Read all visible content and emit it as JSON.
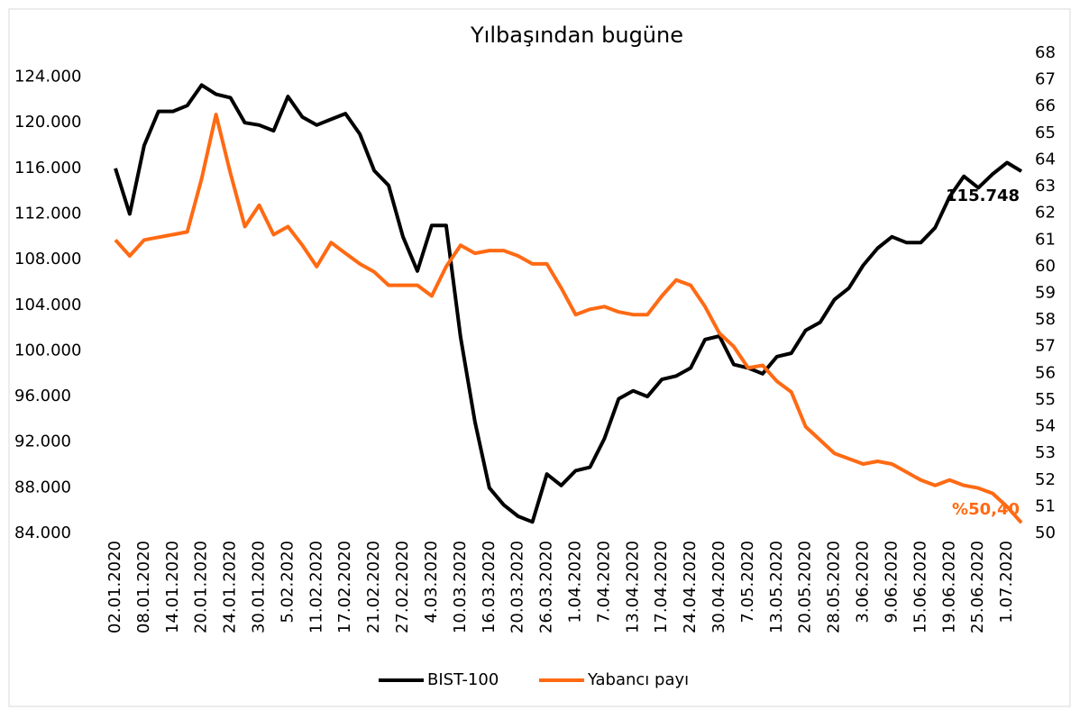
{
  "chart_data": {
    "type": "line",
    "title": "Yılbaşından bugüne",
    "categories": [
      "02.01.2020",
      null,
      "08.01.2020",
      null,
      "14.01.2020",
      null,
      "20.01.2020",
      null,
      "24.01.2020",
      null,
      "30.01.2020",
      null,
      "5.02.2020",
      null,
      "11.02.2020",
      null,
      "17.02.2020",
      null,
      "21.02.2020",
      null,
      "27.02.2020",
      null,
      "4.03.2020",
      null,
      "10.03.2020",
      null,
      "16.03.2020",
      null,
      "20.03.2020",
      null,
      "26.03.2020",
      null,
      "1.04.2020",
      null,
      "7.04.2020",
      null,
      "13.04.2020",
      null,
      "17.04.2020",
      null,
      "24.04.2020",
      null,
      "30.04.2020",
      null,
      "7.05.2020",
      null,
      "13.05.2020",
      null,
      "20.05.2020",
      null,
      "28.05.2020",
      null,
      "3.06.2020",
      null,
      "9.06.2020",
      null,
      "15.06.2020",
      null,
      "19.06.2020",
      null,
      "25.06.2020",
      null,
      "1.07.2020",
      null
    ],
    "series": [
      {
        "name": "BIST-100",
        "color": "#000000",
        "values": [
          116000,
          112000,
          118000,
          121000,
          121000,
          121500,
          123300,
          122500,
          122200,
          120000,
          119800,
          119300,
          122300,
          120500,
          119800,
          120300,
          120800,
          119000,
          115800,
          114500,
          110000,
          107000,
          111000,
          111000,
          101200,
          93800,
          88000,
          86500,
          85500,
          85000,
          89200,
          88200,
          89500,
          89800,
          92300,
          95800,
          96500,
          96000,
          97500,
          97800,
          98500,
          101000,
          101300,
          98800,
          98500,
          98000,
          99500,
          99800,
          101800,
          102500,
          104500,
          105500,
          107500,
          109000,
          110000,
          109500,
          109500,
          110800,
          113500,
          115300,
          114300,
          115500,
          116500,
          115748
        ],
        "value_labels": [
          null,
          null,
          null,
          null,
          null,
          null,
          null,
          null,
          null,
          null,
          null,
          null,
          null,
          null,
          null,
          null,
          null,
          null,
          null,
          null,
          null,
          null,
          null,
          null,
          null,
          null,
          null,
          null,
          null,
          null,
          null,
          null,
          null,
          null,
          null,
          null,
          null,
          null,
          null,
          null,
          null,
          null,
          null,
          null,
          null,
          null,
          null,
          null,
          null,
          null,
          null,
          null,
          null,
          null,
          null,
          null,
          null,
          null,
          null,
          null,
          null,
          null,
          null,
          "115.748"
        ]
      },
      {
        "name": "Yabancı payı",
        "color": "#ff6a13",
        "axis": "y2",
        "values": [
          61.0,
          60.4,
          61.0,
          61.1,
          61.2,
          61.3,
          63.3,
          65.7,
          63.5,
          61.5,
          62.3,
          61.2,
          61.5,
          60.8,
          60.0,
          60.9,
          60.5,
          60.1,
          59.8,
          59.3,
          59.3,
          59.3,
          58.9,
          60.0,
          60.8,
          60.5,
          60.6,
          60.6,
          60.4,
          60.1,
          60.1,
          59.2,
          58.2,
          58.4,
          58.5,
          58.3,
          58.2,
          58.2,
          58.9,
          59.5,
          59.3,
          58.5,
          57.5,
          57.0,
          56.2,
          56.3,
          55.7,
          55.3,
          54.0,
          53.5,
          53.0,
          52.8,
          52.6,
          52.7,
          52.6,
          52.3,
          52.0,
          51.8,
          52.0,
          51.8,
          51.7,
          51.5,
          51.0,
          50.4
        ],
        "value_labels": [
          null,
          null,
          null,
          null,
          null,
          null,
          null,
          null,
          null,
          null,
          null,
          null,
          null,
          null,
          null,
          null,
          null,
          null,
          null,
          null,
          null,
          null,
          null,
          null,
          null,
          null,
          null,
          null,
          null,
          null,
          null,
          null,
          null,
          null,
          null,
          null,
          null,
          null,
          null,
          null,
          null,
          null,
          null,
          null,
          null,
          null,
          null,
          null,
          null,
          null,
          null,
          null,
          null,
          null,
          null,
          null,
          null,
          null,
          null,
          null,
          null,
          null,
          null,
          "%50,40"
        ]
      }
    ],
    "ylim": [
      84000,
      126100
    ],
    "yticks": [
      {
        "value": 84000,
        "label": "84.000"
      },
      {
        "value": 88000,
        "label": "88.000"
      },
      {
        "value": 92000,
        "label": "92.000"
      },
      {
        "value": 96000,
        "label": "96.000"
      },
      {
        "value": 100000,
        "label": "100.000"
      },
      {
        "value": 104000,
        "label": "104.000"
      },
      {
        "value": 108000,
        "label": "108.000"
      },
      {
        "value": 112000,
        "label": "112.000"
      },
      {
        "value": 116000,
        "label": "116.000"
      },
      {
        "value": 120000,
        "label": "120.000"
      },
      {
        "value": 124000,
        "label": "124.000"
      }
    ],
    "y2lim": [
      50,
      68
    ],
    "y2ticks": [
      50,
      51,
      52,
      53,
      54,
      55,
      56,
      57,
      58,
      59,
      60,
      61,
      62,
      63,
      64,
      65,
      66,
      67,
      68
    ],
    "grid": false
  }
}
